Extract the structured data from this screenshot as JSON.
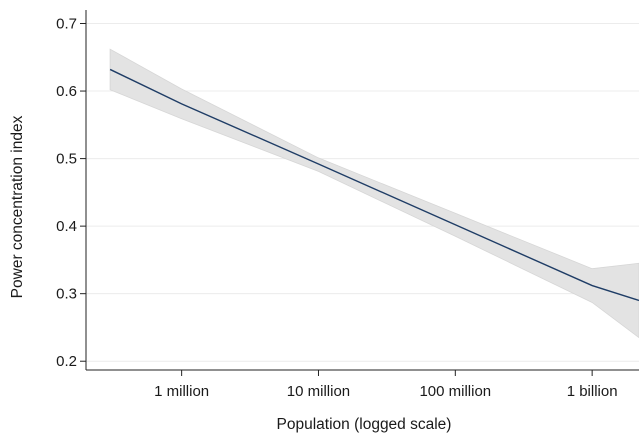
{
  "chart_data": {
    "type": "line",
    "title": "",
    "xlabel": "Population (logged scale)",
    "ylabel": "Power concentration index",
    "x_scale": "log",
    "xlim": [
      200000,
      2200000000
    ],
    "ylim": [
      0.187,
      0.72
    ],
    "x_ticks": [
      {
        "value": 1000000,
        "label": "1 million"
      },
      {
        "value": 10000000,
        "label": "10 million"
      },
      {
        "value": 100000000,
        "label": "100 million"
      },
      {
        "value": 1000000000,
        "label": "1 billion"
      }
    ],
    "y_ticks": [
      {
        "value": 0.2,
        "label": "0.2"
      },
      {
        "value": 0.3,
        "label": "0.3"
      },
      {
        "value": 0.4,
        "label": "0.4"
      },
      {
        "value": 0.5,
        "label": "0.5"
      },
      {
        "value": 0.6,
        "label": "0.6"
      },
      {
        "value": 0.7,
        "label": "0.7"
      }
    ],
    "grid": true,
    "series": [
      {
        "x": [
          300000,
          1000000,
          10000000,
          100000000,
          1000000000,
          2200000000
        ],
        "y": [
          0.632,
          0.581,
          0.492,
          0.402,
          0.312,
          0.29
        ],
        "ci_upper": [
          0.662,
          0.603,
          0.501,
          0.419,
          0.337,
          0.345
        ],
        "ci_lower": [
          0.602,
          0.559,
          0.481,
          0.385,
          0.287,
          0.235
        ]
      }
    ],
    "colors": {
      "line": "#1f3d66",
      "band": "#e3e3e3",
      "band_edge": "#d6d6d6",
      "grid": "#ececec",
      "axis": "#222222"
    }
  }
}
